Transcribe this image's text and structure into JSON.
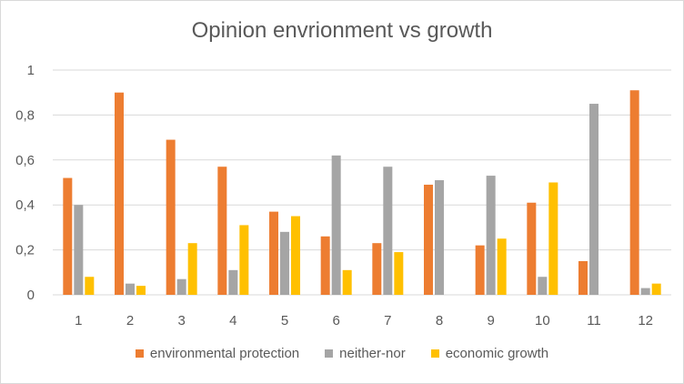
{
  "chart_data": {
    "type": "bar",
    "title": "Opinion envrionment vs growth",
    "categories": [
      "1",
      "2",
      "3",
      "4",
      "5",
      "6",
      "7",
      "8",
      "9",
      "10",
      "11",
      "12"
    ],
    "ylim": [
      0,
      1
    ],
    "yticks": [
      "0",
      "0,2",
      "0,4",
      "0,6",
      "0,8",
      "1"
    ],
    "ytick_values": [
      0,
      0.2,
      0.4,
      0.6,
      0.8,
      1
    ],
    "grid": true,
    "legend_position": "bottom",
    "series": [
      {
        "name": "environmental protection",
        "color": "#ed7d31",
        "values": [
          0.52,
          0.9,
          0.69,
          0.57,
          0.37,
          0.26,
          0.23,
          0.49,
          0.22,
          0.41,
          0.15,
          0.91
        ]
      },
      {
        "name": "neither-nor",
        "color": "#a5a5a5",
        "values": [
          0.4,
          0.05,
          0.07,
          0.11,
          0.28,
          0.62,
          0.57,
          0.51,
          0.53,
          0.08,
          0.85,
          0.03
        ]
      },
      {
        "name": "economic growth",
        "color": "#ffc000",
        "values": [
          0.08,
          0.04,
          0.23,
          0.31,
          0.35,
          0.11,
          0.19,
          0.0,
          0.25,
          0.5,
          0.0,
          0.05
        ]
      }
    ]
  }
}
